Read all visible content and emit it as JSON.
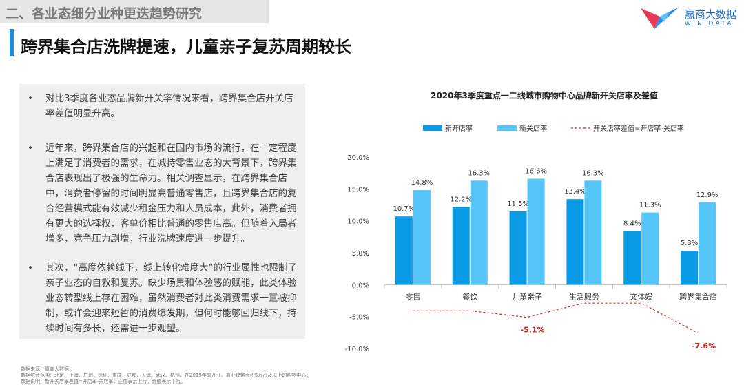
{
  "header": {
    "section": "二、各业态细分业种更迭趋势研究",
    "logo_name": "赢商大数据",
    "logo_sub": "WIN DATA",
    "title": "跨界集合店洗牌提速，儿童亲子复苏周期较长"
  },
  "bullets": [
    "对比3季度各业态品牌新开关率情况来看，跨界集合店开关店率差值明显升高。",
    "近年来，跨界集合店的兴起和在国内市场的流行，在一定程度上满足了消费者的需求，在减持零售业态的大背景下，跨界集合店表现出了极强的生命力。相关调查显示，在跨界集合店中，消费者停留的时间明显高普通零售店，且跨界集合店的复合经营模式能有效减少租金压力和人员成本，此外，消费者拥有更大的选择权，客单价相比普通的零售店高。但随着入局者增多，竞争压力剧增，行业洗牌速度进一步提升。",
    "其次，“高度依赖线下，线上转化难度大”的行业属性也限制了亲子业态的自救和复苏。缺少场景和体验感的赋能，此类体验业态转型线上存在困难，虽然消费者对此类消费需求一直被抑制，或许会迎来短暂的消费爆发期，但何时能够回归线下，持续时间有多长，还需进一步观望。"
  ],
  "chart_data": {
    "type": "bar",
    "title": "2020年3季度重点一二线城市购物中心品牌新开关店率及差值",
    "categories": [
      "零售",
      "餐饮",
      "儿童亲子",
      "生活服务",
      "文体娱",
      "跨界集合店"
    ],
    "series": [
      {
        "name": "新开店率",
        "type": "bar",
        "values": [
          10.7,
          12.2,
          11.5,
          13.4,
          8.4,
          5.3
        ],
        "color": "#0a9be6",
        "labels": [
          "10.7%",
          "12.2%",
          "11.5%",
          "13.4%",
          "8.4%",
          "5.3%"
        ]
      },
      {
        "name": "新关店率",
        "type": "bar",
        "values": [
          14.8,
          16.3,
          16.6,
          16.3,
          11.3,
          12.9
        ],
        "color": "#55c6f7",
        "labels": [
          "14.8%",
          "16.3%",
          "16.6%",
          "16.3%",
          "11.3%",
          "12.9%"
        ]
      },
      {
        "name": "开关店率差值=开店率-关店率",
        "type": "line",
        "style": "dashed",
        "values": [
          -4.1,
          -4.1,
          -5.1,
          -2.9,
          -2.9,
          -7.6
        ],
        "color": "#e02020",
        "labels": [
          "",
          "",
          "-5.1%",
          "",
          "",
          "-7.6%"
        ]
      }
    ],
    "yticks": [
      "20.0%",
      "15.0%",
      "10.0%",
      "5.0%",
      "0.0%",
      "-5.0%",
      "-10.0%"
    ],
    "ylim": [
      -10,
      20
    ],
    "legend_position": "top"
  },
  "footer": [
    "数据来源：赢商大数据",
    "数据统计范围：北京、上海、广州、深圳、重庆、成都、天津、武汉、杭州，在2019年前开业、商业建筑面积5万㎡及以上的购物中心；",
    "数据说明：新开关店率差值=开店率-关店率；正值表示上行，负值表示下行。"
  ]
}
